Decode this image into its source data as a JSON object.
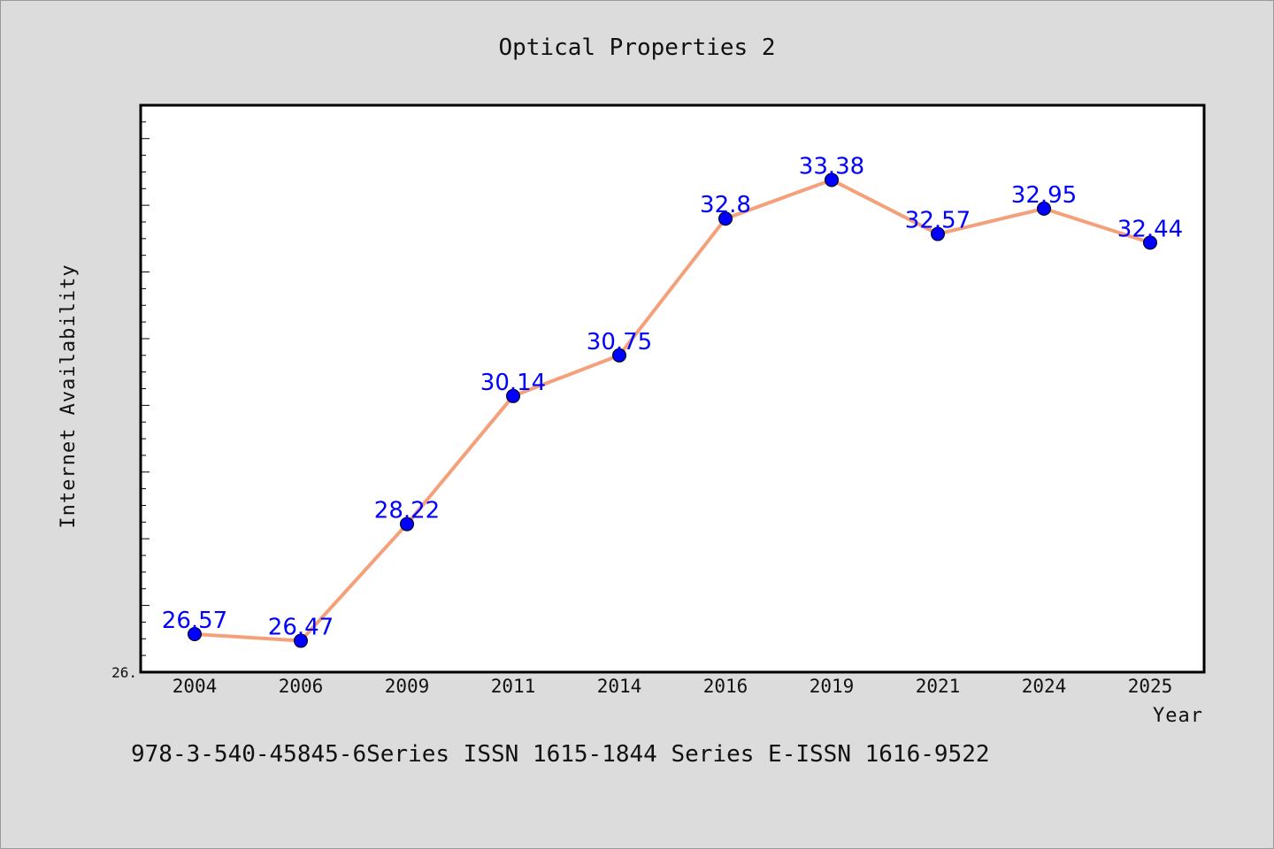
{
  "chart_data": {
    "type": "line",
    "title": "Optical Properties 2",
    "xlabel": "Year",
    "ylabel": "Internet Availability",
    "categories": [
      "2004",
      "2006",
      "2009",
      "2011",
      "2014",
      "2016",
      "2019",
      "2021",
      "2024",
      "2025"
    ],
    "series": [
      {
        "values": [
          26.57,
          26.47,
          28.22,
          30.14,
          30.75,
          32.8,
          33.38,
          32.57,
          32.95,
          32.44
        ],
        "labels": [
          "26.57",
          "26.47",
          "28.22",
          "30.14",
          "30.75",
          "32.8",
          "33.38",
          "32.57",
          "32.95",
          "32.44"
        ]
      }
    ],
    "ylim": [
      26.0,
      34.5
    ],
    "y_min_label": "26.",
    "grid": false,
    "line_color": "#f4a07a",
    "marker_color": "#0000ff",
    "label_color": "#0000ff"
  },
  "footer": {
    "text": "978-3-540-45845-6Series ISSN 1615-1844 Series E-ISSN 1616-9522"
  }
}
